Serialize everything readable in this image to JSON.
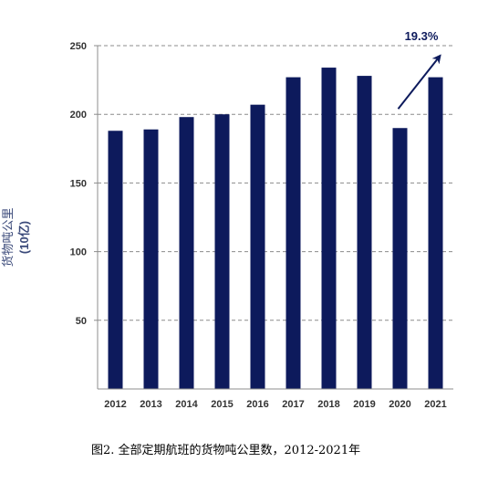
{
  "chart_data": {
    "type": "bar",
    "categories": [
      "2012",
      "2013",
      "2014",
      "2015",
      "2016",
      "2017",
      "2018",
      "2019",
      "2020",
      "2021"
    ],
    "values": [
      188,
      189,
      198,
      200,
      207,
      227,
      234,
      228,
      190,
      227
    ],
    "ylabel": "货物吨公里",
    "ylabel_unit": "(10亿)",
    "yticks": [
      50,
      100,
      150,
      200,
      250
    ],
    "ylim": [
      0,
      250
    ],
    "grid": true,
    "gridline_style": "dashed",
    "bar_color": "#0d1a5c",
    "annotation": {
      "text": "19.3%",
      "color": "#0d1a5c"
    }
  },
  "caption": "图2. 全部定期航班的货物吨公里数，2012-2021年"
}
